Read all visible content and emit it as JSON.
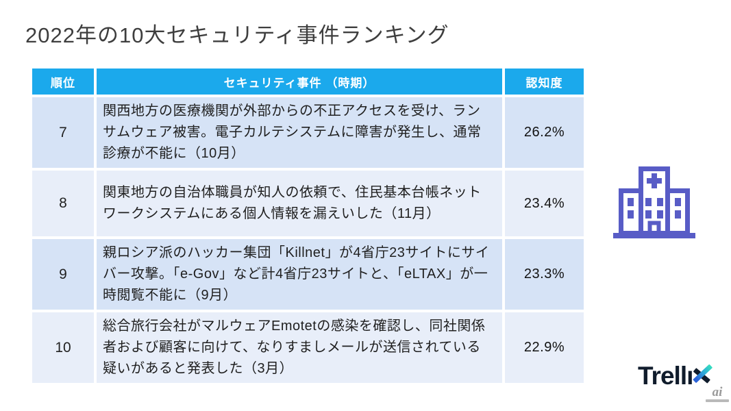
{
  "page": {
    "title": "2022年の10大セキュリティ事件ランキング"
  },
  "table": {
    "headers": {
      "rank": "順位",
      "incident": "セキュリティ事件 （時期）",
      "awareness": "認知度"
    },
    "rows": [
      {
        "rank": "7",
        "incident": "関西地方の医療機関が外部からの不正アクセスを受け、ランサムウェア被害。電子カルテシステムに障害が発生し、通常診療が不能に（10月）",
        "awareness": "26.2%"
      },
      {
        "rank": "8",
        "incident": "関東地方の自治体職員が知人の依頼で、住民基本台帳ネットワークシステムにある個人情報を漏えいした（11月）",
        "awareness": "23.4%"
      },
      {
        "rank": "9",
        "incident": "親ロシア派のハッカー集団「Killnet」が4省庁23サイトにサイバー攻撃。「e-Gov」など計4省庁23サイトと、「eLTAX」が一時閲覧不能に（9月）",
        "awareness": "23.3%"
      },
      {
        "rank": "10",
        "incident": "総合旅行会社がマルウェアEmotetの感染を確認し、同社関係者および顧客に向けて、なりすましメールが送信されている疑いがあると発表した（3月）",
        "awareness": "22.9%"
      }
    ]
  },
  "logo": {
    "name": "Trellix",
    "wordmark_prefix": "Trellı"
  },
  "watermark": {
    "text": "ai"
  },
  "icons": {
    "hospital": "hospital-building-icon"
  },
  "colors": {
    "header_bg": "#1ba9ec",
    "row_odd_bg": "#d6e3f6",
    "row_even_bg": "#e8eef9",
    "accent_purple": "#585cc6",
    "logo_dark": "#101c2c"
  }
}
